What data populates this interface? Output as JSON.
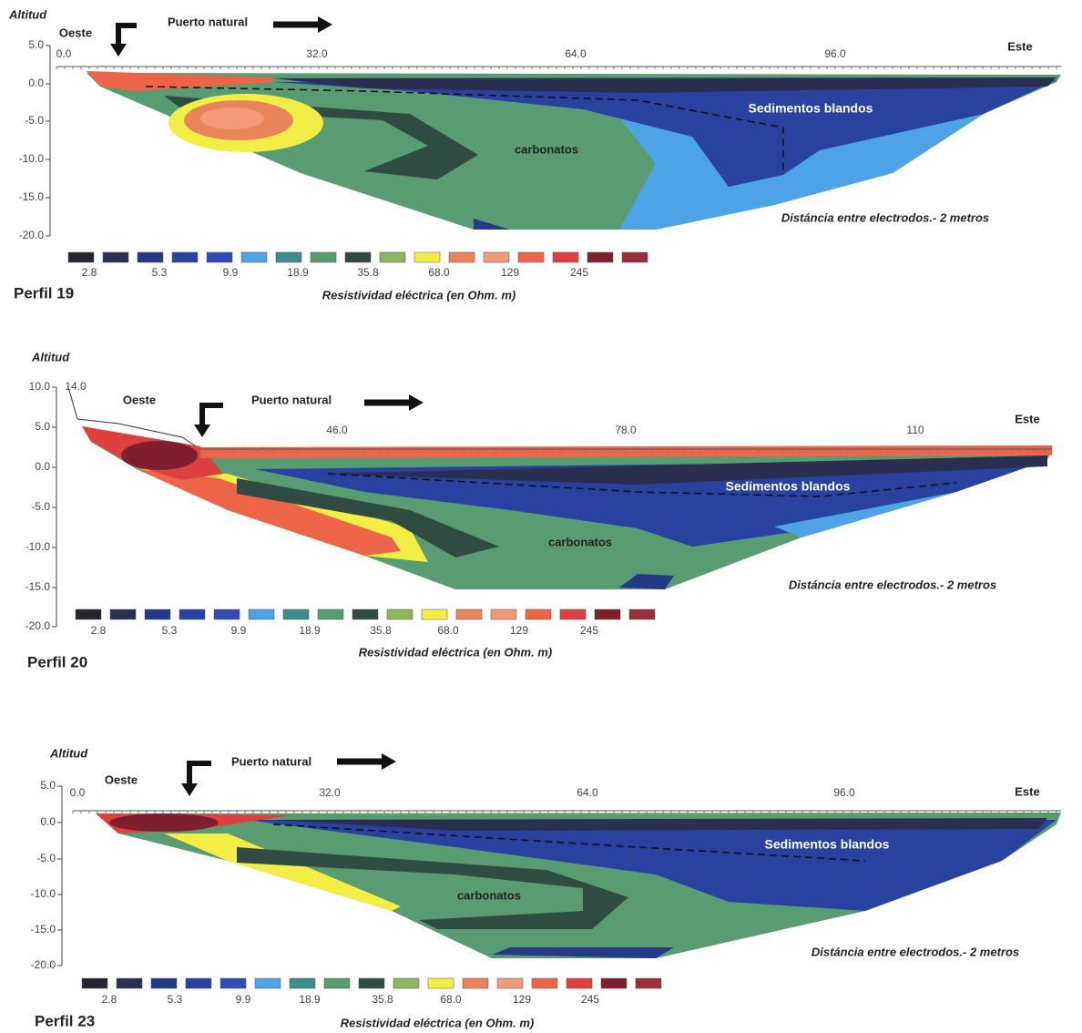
{
  "panels": [
    {
      "altitude_label": "Altitud",
      "west": "Oeste",
      "pass_label": "Puerto natural",
      "east": "Este",
      "y_ticks": [
        "5.0",
        "0.0",
        "-5.0",
        "-10.0",
        "-15.0",
        "-20.0"
      ],
      "x_ticks": [
        "0.0",
        "32.0",
        "64.0",
        "96.0"
      ],
      "soft_sediments": "Sedimentos blandos",
      "carbonates": "carbonatos",
      "electrode_note": "Distáncia entre electrodos.- 2 metros",
      "legend_labels": [
        "2.8",
        "5.3",
        "9.9",
        "18.9",
        "35.8",
        "68.0",
        "129",
        "245"
      ],
      "legend_title": "Resistividad eléctrica (en Ohm. m)",
      "profile": "Perfil 19"
    },
    {
      "altitude_label": "Altitud",
      "west": "Oeste",
      "pass_label": "Puerto natural",
      "east": "Este",
      "y_ticks": [
        "10.0",
        "5.0",
        "0.0",
        "-5.0",
        "-10.0",
        "-15.0",
        "-20.0"
      ],
      "x_ticks": [
        "14.0",
        "46.0",
        "78.0",
        "110"
      ],
      "soft_sediments": "Sedimentos blandos",
      "carbonates": "carbonatos",
      "electrode_note": "Distáncia entre electrodos.- 2 metros",
      "legend_labels": [
        "2.8",
        "5.3",
        "9.9",
        "18.9",
        "35.8",
        "68.0",
        "129",
        "245"
      ],
      "legend_title": "Resistividad eléctrica (en Ohm. m)",
      "profile": "Perfil 20"
    },
    {
      "altitude_label": "Altitud",
      "west": "Oeste",
      "pass_label": "Puerto natural",
      "east": "Este",
      "y_ticks": [
        "5.0",
        "0.0",
        "-5.0",
        "-10.0",
        "-15.0",
        "-20.0"
      ],
      "x_ticks": [
        "0.0",
        "32.0",
        "64.0",
        "96.0"
      ],
      "soft_sediments": "Sedimentos blandos",
      "carbonates": "carbonatos",
      "electrode_note": "Distáncia entre electrodos.- 2 metros",
      "legend_labels": [
        "2.8",
        "5.3",
        "9.9",
        "18.9",
        "35.8",
        "68.0",
        "129",
        "245"
      ],
      "legend_title": "Resistividad eléctrica (en Ohm. m)",
      "profile": "Perfil 23"
    }
  ]
}
